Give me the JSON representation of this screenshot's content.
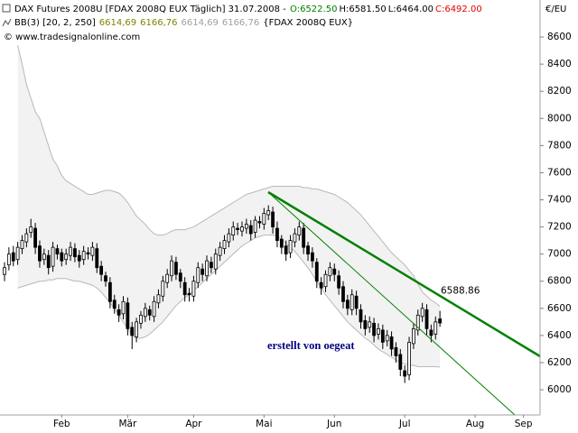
{
  "chart_data": {
    "type": "candlestick",
    "title": "DAX Futures 2008U [FDAX 2008Q EUX  Täglich] 31.07.2008 -",
    "ohlc_labels": [
      {
        "text": "O:6522.50",
        "color": "#008000"
      },
      {
        "text": "H:6581.50",
        "color": "#000000"
      },
      {
        "text": "L:6464.00",
        "color": "#000000"
      },
      {
        "text": "C:6492.00",
        "color": "#e00000"
      }
    ],
    "indicator": "BB(3) [20, 2, 250]",
    "indicator_values": [
      {
        "text": "6614,69",
        "color": "#808000"
      },
      {
        "text": "6166,76",
        "color": "#808000"
      },
      {
        "text": "6614,69",
        "color": "#a0a0a0"
      },
      {
        "text": "6166,76",
        "color": "#a0a0a0"
      }
    ],
    "indicator_source": "{FDAX 2008Q EUX}",
    "copyright": "© www.tradesignalonline.com",
    "unit": "€/EU",
    "annotation": "erstellt von oegeat",
    "trendline_value": 6588.86,
    "trendline_color": "#008000",
    "ylim": [
      5814,
      8873
    ],
    "yticks": [
      6000,
      6200,
      6400,
      6600,
      6800,
      7000,
      7200,
      7400,
      7600,
      7800,
      8000,
      8200,
      8400,
      8600
    ],
    "grid": false,
    "band_color": "#b8b8b8",
    "categories": [
      null,
      null,
      null,
      null,
      null,
      null,
      null,
      null,
      null,
      null,
      null,
      null,
      null,
      "Feb",
      null,
      null,
      null,
      null,
      null,
      null,
      null,
      null,
      null,
      null,
      null,
      null,
      null,
      null,
      "Mär",
      null,
      null,
      null,
      null,
      null,
      null,
      null,
      null,
      null,
      null,
      null,
      null,
      null,
      null,
      "Apr",
      null,
      null,
      null,
      null,
      null,
      null,
      null,
      null,
      null,
      null,
      null,
      null,
      null,
      null,
      null,
      "Mai",
      null,
      null,
      null,
      null,
      null,
      null,
      null,
      null,
      null,
      null,
      null,
      null,
      null,
      null,
      null,
      "Jun",
      null,
      null,
      null,
      null,
      null,
      null,
      null,
      null,
      null,
      null,
      null,
      null,
      null,
      null,
      null,
      "Jul",
      null,
      null,
      null,
      null,
      null,
      null,
      null,
      null,
      null,
      null,
      null,
      null,
      null,
      null,
      null,
      "Aug",
      null,
      null,
      null,
      null,
      null,
      null,
      null,
      null,
      null,
      null,
      "Sep",
      null
    ],
    "open": [
      6850,
      6920,
      7010,
      6960,
      7040,
      7090,
      7160,
      7190,
      7060,
      6960,
      6990,
      6910,
      7040,
      7010,
      6960,
      6990,
      7040,
      6990,
      6960,
      7010,
      6990,
      7040,
      6910,
      6840,
      6790,
      6660,
      6590,
      6560,
      6640,
      6460,
      6390,
      6490,
      6540,
      6590,
      6540,
      6640,
      6690,
      6790,
      6840,
      6940,
      6860,
      6790,
      6710,
      6690,
      6790,
      6890,
      6840,
      6940,
      6890,
      6990,
      7040,
      7090,
      7140,
      7190,
      7170,
      7190,
      7210,
      7160,
      7240,
      7220,
      7290,
      7310,
      7190,
      7110,
      7060,
      7010,
      7090,
      7140,
      7190,
      7060,
      7010,
      6940,
      6790,
      6760,
      6840,
      6890,
      6840,
      6760,
      6660,
      6590,
      6690,
      6590,
      6510,
      6460,
      6490,
      6410,
      6440,
      6360,
      6390,
      6310,
      6260,
      6140,
      6110,
      6340,
      6440,
      6540,
      6590,
      6440,
      6410,
      6522.5,
      null,
      null,
      null,
      null,
      null,
      null,
      null,
      null,
      null,
      null,
      null,
      null,
      null,
      null,
      null,
      null,
      null,
      null,
      null,
      null
    ],
    "high": [
      6940,
      7050,
      7060,
      7090,
      7140,
      7190,
      7260,
      7230,
      7100,
      7040,
      7030,
      7090,
      7070,
      7040,
      7040,
      7090,
      7080,
      7030,
      7060,
      7050,
      7090,
      7080,
      6950,
      6870,
      6830,
      6700,
      6630,
      6690,
      6680,
      6500,
      6530,
      6580,
      6640,
      6620,
      6690,
      6740,
      6840,
      6890,
      6990,
      6980,
      6890,
      6830,
      6750,
      6840,
      6940,
      6930,
      6990,
      6980,
      7040,
      7090,
      7140,
      7190,
      7240,
      7230,
      7240,
      7260,
      7250,
      7280,
      7280,
      7340,
      7360,
      7350,
      7240,
      7140,
      7100,
      7140,
      7190,
      7240,
      7230,
      7090,
      7050,
      6970,
      6830,
      6880,
      6940,
      6930,
      6880,
      6800,
      6700,
      6740,
      6730,
      6630,
      6550,
      6540,
      6530,
      6490,
      6480,
      6440,
      6430,
      6350,
      6300,
      6180,
      6390,
      6490,
      6590,
      6640,
      6630,
      6480,
      6540,
      6581.5,
      null,
      null,
      null,
      null,
      null,
      null,
      null,
      null,
      null,
      null,
      null,
      null,
      null,
      null,
      null,
      null,
      null,
      null,
      null,
      null
    ],
    "low": [
      6800,
      6880,
      6910,
      6920,
      7000,
      7050,
      7120,
      7000,
      6900,
      6920,
      6850,
      6870,
      6960,
      6910,
      6920,
      6950,
      6940,
      6900,
      6920,
      6960,
      6950,
      6860,
      6800,
      6760,
      6600,
      6560,
      6500,
      6520,
      6400,
      6300,
      6350,
      6450,
      6500,
      6510,
      6500,
      6600,
      6650,
      6750,
      6800,
      6810,
      6750,
      6650,
      6650,
      6650,
      6750,
      6800,
      6800,
      6860,
      6850,
      6950,
      7000,
      7050,
      7100,
      7140,
      7130,
      7150,
      7100,
      7120,
      7190,
      7180,
      7250,
      7150,
      7050,
      7000,
      6950,
      6970,
      7050,
      7100,
      7000,
      6950,
      6900,
      6750,
      6700,
      6720,
      6800,
      6800,
      6700,
      6600,
      6550,
      6550,
      6550,
      6450,
      6400,
      6420,
      6350,
      6370,
      6300,
      6320,
      6250,
      6200,
      6100,
      6050,
      6070,
      6300,
      6400,
      6500,
      6400,
      6350,
      6370,
      6464,
      null,
      null,
      null,
      null,
      null,
      null,
      null,
      null,
      null,
      null,
      null,
      null,
      null,
      null,
      null,
      null,
      null,
      null,
      null,
      null
    ],
    "close": [
      6900,
      7000,
      6950,
      7050,
      7100,
      7150,
      7200,
      7050,
      6950,
      7000,
      6900,
      7050,
      7000,
      6950,
      7000,
      7050,
      6980,
      6950,
      7020,
      7000,
      7050,
      6900,
      6850,
      6800,
      6650,
      6600,
      6550,
      6650,
      6450,
      6400,
      6500,
      6550,
      6600,
      6550,
      6650,
      6700,
      6800,
      6850,
      6950,
      6850,
      6800,
      6700,
      6700,
      6800,
      6900,
      6850,
      6950,
      6900,
      7000,
      7050,
      7100,
      7150,
      7200,
      7180,
      7200,
      7220,
      7150,
      7250,
      7230,
      7300,
      7320,
      7200,
      7100,
      7050,
      7000,
      7100,
      7150,
      7200,
      7050,
      7000,
      6950,
      6800,
      6750,
      6850,
      6900,
      6850,
      6750,
      6650,
      6600,
      6700,
      6600,
      6500,
      6450,
      6500,
      6400,
      6450,
      6350,
      6400,
      6300,
      6250,
      6150,
      6100,
      6350,
      6450,
      6550,
      6600,
      6450,
      6400,
      6500,
      6492,
      null,
      null,
      null,
      null,
      null,
      null,
      null,
      null,
      null,
      null,
      null,
      null,
      null,
      null,
      null,
      null,
      null,
      null,
      null,
      null
    ],
    "band_upper": [
      null,
      null,
      null,
      8540,
      8400,
      8250,
      8150,
      8050,
      8000,
      7900,
      7800,
      7700,
      7650,
      7580,
      7540,
      7520,
      7500,
      7480,
      7460,
      7440,
      7440,
      7450,
      7460,
      7470,
      7470,
      7460,
      7450,
      7420,
      7380,
      7330,
      7280,
      7250,
      7220,
      7180,
      7150,
      7140,
      7140,
      7150,
      7170,
      7180,
      7180,
      7180,
      7190,
      7200,
      7220,
      7240,
      7260,
      7280,
      7300,
      7320,
      7340,
      7360,
      7380,
      7400,
      7420,
      7440,
      7450,
      7460,
      7470,
      7480,
      7490,
      7500,
      7500,
      7500,
      7500,
      7500,
      7500,
      7500,
      7490,
      7490,
      7480,
      7480,
      7470,
      7460,
      7450,
      7440,
      7420,
      7400,
      7380,
      7350,
      7320,
      7290,
      7250,
      7210,
      7170,
      7130,
      7090,
      7050,
      7010,
      6980,
      6950,
      6920,
      6880,
      6840,
      6780,
      6720,
      6690,
      6660,
      6640,
      6615,
      null,
      null,
      null,
      null,
      null,
      null,
      null,
      null,
      null,
      null,
      null,
      null,
      null,
      null,
      null,
      null,
      null,
      null,
      null,
      null
    ],
    "band_lower": [
      null,
      null,
      null,
      6750,
      6760,
      6770,
      6780,
      6790,
      6800,
      6800,
      6810,
      6810,
      6820,
      6820,
      6820,
      6810,
      6800,
      6800,
      6790,
      6780,
      6770,
      6750,
      6720,
      6680,
      6640,
      6600,
      6550,
      6500,
      6450,
      6400,
      6380,
      6380,
      6390,
      6410,
      6440,
      6470,
      6500,
      6540,
      6580,
      6620,
      6650,
      6680,
      6700,
      6730,
      6760,
      6790,
      6820,
      6850,
      6880,
      6910,
      6940,
      6970,
      7000,
      7030,
      7060,
      7080,
      7100,
      7120,
      7130,
      7140,
      7140,
      7140,
      7130,
      7110,
      7080,
      7050,
      7020,
      6980,
      6940,
      6900,
      6850,
      6800,
      6750,
      6700,
      6660,
      6620,
      6580,
      6540,
      6500,
      6470,
      6440,
      6410,
      6380,
      6360,
      6330,
      6300,
      6280,
      6260,
      6240,
      6220,
      6200,
      6190,
      6180,
      6180,
      6170,
      6170,
      6170,
      6170,
      6170,
      6167,
      null,
      null,
      null,
      null,
      null,
      null,
      null,
      null,
      null,
      null,
      null,
      null,
      null,
      null,
      null,
      null,
      null,
      null,
      null,
      null
    ]
  }
}
